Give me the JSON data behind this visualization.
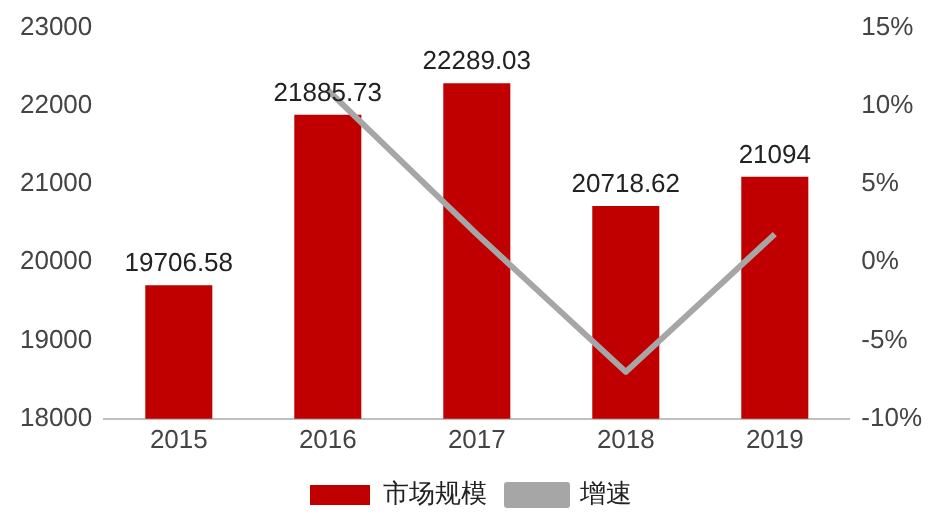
{
  "chart_data": {
    "type": "bar",
    "categories": [
      "2015",
      "2016",
      "2017",
      "2018",
      "2019"
    ],
    "series": [
      {
        "name": "市场规模",
        "color": "#c00000",
        "values": [
          19706.58,
          21885.73,
          22289.03,
          20718.62,
          21094
        ],
        "value_labels": [
          "19706.58",
          "21885.73",
          "22289.03",
          "20718.62",
          "21094"
        ]
      },
      {
        "name": "增速",
        "type": "line",
        "axis": "y2",
        "color": "#a6a6a6",
        "values": [
          null,
          11,
          1.8,
          -7,
          1.8
        ]
      }
    ],
    "ylim": [
      18000,
      23000
    ],
    "yticks": [
      18000,
      19000,
      20000,
      21000,
      22000,
      23000
    ],
    "y2lim": [
      -10,
      15
    ],
    "y2ticks": [
      {
        "value": -10,
        "label": "-10%"
      },
      {
        "value": -5,
        "label": "-5%"
      },
      {
        "value": 0,
        "label": "0%"
      },
      {
        "value": 5,
        "label": "5%"
      },
      {
        "value": 10,
        "label": "10%"
      },
      {
        "value": 15,
        "label": "15%"
      }
    ],
    "grid": false,
    "legend": "bottom",
    "marker": "none"
  }
}
